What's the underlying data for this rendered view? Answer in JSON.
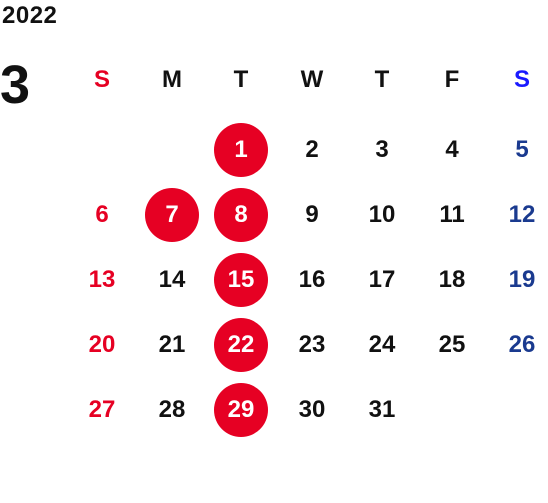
{
  "year": "2022",
  "month": "3",
  "weekdays": [
    "S",
    "M",
    "T",
    "W",
    "T",
    "F",
    "S"
  ],
  "weeks": [
    [
      "",
      "",
      "1",
      "2",
      "3",
      "4",
      "5"
    ],
    [
      "6",
      "7",
      "8",
      "9",
      "10",
      "11",
      "12"
    ],
    [
      "13",
      "14",
      "15",
      "16",
      "17",
      "18",
      "19"
    ],
    [
      "20",
      "21",
      "22",
      "23",
      "24",
      "25",
      "26"
    ],
    [
      "27",
      "28",
      "29",
      "30",
      "31",
      "",
      ""
    ]
  ],
  "highlighted_days": [
    "1",
    "7",
    "8",
    "15",
    "22",
    "29"
  ],
  "colors": {
    "highlight": "#e60023",
    "sunday": "#e60023",
    "saturday": "#1a3a8f",
    "saturday_header": "#1a1aff",
    "text": "#111111"
  }
}
